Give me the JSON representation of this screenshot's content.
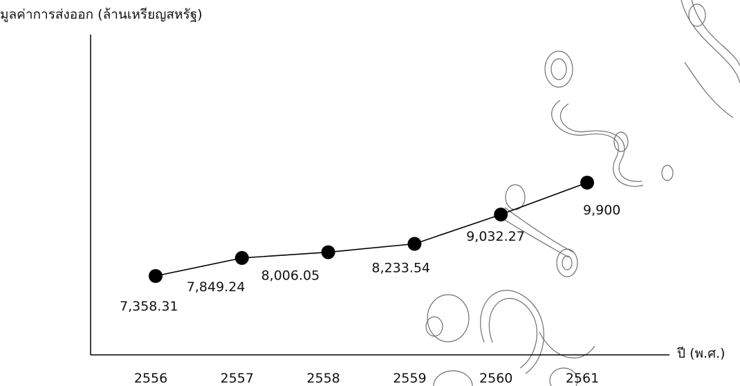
{
  "chart_data": {
    "type": "line",
    "title": "",
    "ylabel": "มูลค่าการส่งออก (ล้านเหรียญสหรัฐ)",
    "xlabel": "ปี (พ.ศ.)",
    "categories": [
      "2556",
      "2557",
      "2558",
      "2559",
      "2560",
      "2561"
    ],
    "series": [
      {
        "values": [
          7358.31,
          7849.24,
          8006.05,
          8233.54,
          9032.27,
          9900
        ],
        "data_labels": [
          "7,358.31",
          "7,849.24",
          "8,006.05",
          "8,233.54",
          "9,032.27",
          "9,900"
        ]
      }
    ],
    "grid": false,
    "colors": {
      "line": "#000000",
      "marker": "#000000",
      "axis": "#000000",
      "watermark": "#6f6f6f"
    }
  }
}
